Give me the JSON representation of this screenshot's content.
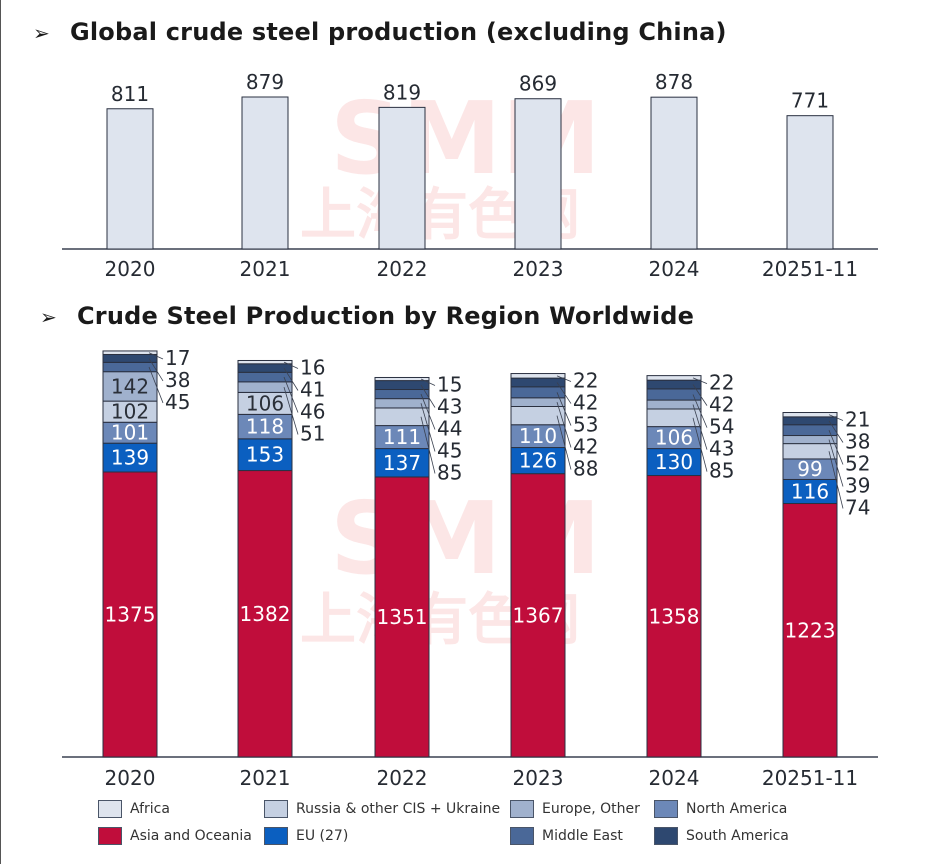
{
  "watermark": {
    "latin": "SMM",
    "cjk": "上海有色网"
  },
  "chart_data": [
    {
      "type": "bar",
      "title": "Global crude steel production (excluding China)",
      "categories": [
        "2020",
        "2021",
        "2022",
        "2023",
        "2024",
        "20251-11"
      ],
      "values": [
        811,
        879,
        819,
        869,
        878,
        771
      ],
      "xlabel": "",
      "ylabel": "",
      "ylim": [
        0,
        900
      ],
      "grid": false,
      "legend": "none",
      "color": "#dee4ee"
    },
    {
      "type": "bar",
      "stacked": true,
      "title": "Crude Steel Production by Region Worldwide",
      "categories": [
        "2020",
        "2021",
        "2022",
        "2023",
        "2024",
        "20251-11"
      ],
      "ylim": [
        0,
        2000
      ],
      "grid": false,
      "legend": "bottom",
      "series": [
        {
          "name": "Asia and Oceania",
          "color": "#c00d3b",
          "label_color": "#ffffff",
          "values": [
            1375,
            1382,
            1351,
            1367,
            1358,
            1223
          ]
        },
        {
          "name": "EU (27)",
          "color": "#0b5fc0",
          "label_color": "#ffffff",
          "values": [
            139,
            153,
            137,
            126,
            130,
            116
          ]
        },
        {
          "name": "North America",
          "color": "#6c88b8",
          "label_color": "#ffffff",
          "values": [
            101,
            118,
            111,
            110,
            106,
            99
          ]
        },
        {
          "name": "Russia & other CIS + Ukraine",
          "color": "#c5d0e2",
          "label_color": "#2a2f38",
          "values": [
            102,
            106,
            85,
            88,
            85,
            74
          ]
        },
        {
          "name": "Europe, Other",
          "color": "#a0b1cd",
          "label_color": "#2a2f38",
          "values": [
            142,
            51,
            45,
            42,
            43,
            39
          ]
        },
        {
          "name": "Middle East",
          "color": "#4a6898",
          "label_color": "#2a2f38",
          "values": [
            45,
            46,
            44,
            53,
            54,
            52
          ]
        },
        {
          "name": "South America",
          "color": "#2e4870",
          "label_color": "#2a2f38",
          "values": [
            38,
            41,
            43,
            42,
            42,
            38
          ]
        },
        {
          "name": "Africa",
          "color": "#dee4ee",
          "label_color": "#2a2f38",
          "values": [
            17,
            16,
            15,
            22,
            22,
            21
          ]
        }
      ],
      "legend_order": [
        "Africa",
        "Russia & other CIS + Ukraine",
        "Europe, Other",
        "North America",
        "Asia and Oceania",
        "EU (27)",
        "Middle East",
        "South America"
      ]
    }
  ]
}
